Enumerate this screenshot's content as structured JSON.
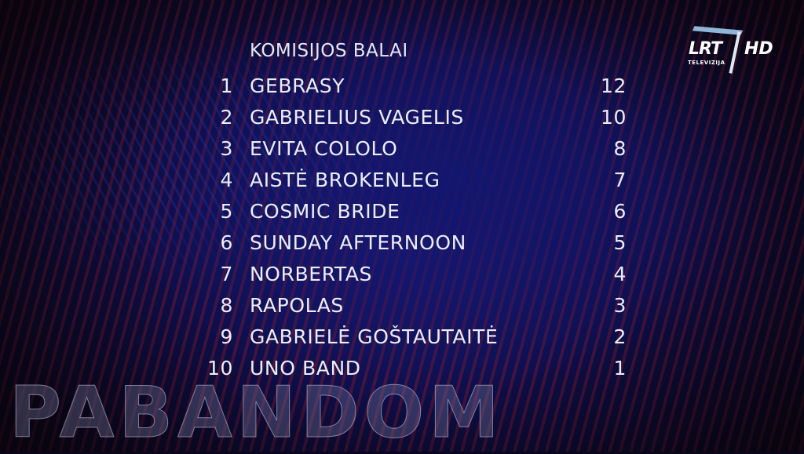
{
  "logo": {
    "brand": "LRT",
    "suffix": "HD",
    "subtitle": "TELEVIZIJA"
  },
  "watermark": "PABANDOM",
  "scoreboard": {
    "title": "KOMISIJOS BALAI",
    "rows": [
      {
        "rank": "1",
        "name": "GEBRASY",
        "points": "12"
      },
      {
        "rank": "2",
        "name": "GABRIELIUS VAGELIS",
        "points": "10"
      },
      {
        "rank": "3",
        "name": "EVITA COLOLO",
        "points": "8"
      },
      {
        "rank": "4",
        "name": "AISTĖ BROKENLEG",
        "points": "7"
      },
      {
        "rank": "5",
        "name": "COSMIC BRIDE",
        "points": "6"
      },
      {
        "rank": "6",
        "name": "SUNDAY AFTERNOON",
        "points": "5"
      },
      {
        "rank": "7",
        "name": "NORBERTAS",
        "points": "4"
      },
      {
        "rank": "8",
        "name": "RAPOLAS",
        "points": "3"
      },
      {
        "rank": "9",
        "name": "GABRIELĖ GOŠTAUTAITĖ",
        "points": "2"
      },
      {
        "rank": "10",
        "name": "UNO BAND",
        "points": "1"
      }
    ]
  }
}
